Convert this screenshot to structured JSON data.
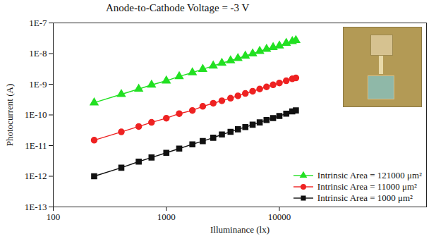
{
  "chart_data": {
    "type": "line",
    "title": "Anode-to-Cathode Voltage = -3 V",
    "x_label": "Illuminance (lx)",
    "y_label": "Photocurrent (A)",
    "log": true,
    "grid": false,
    "legend": "lower right",
    "xlim": [
      100,
      200000
    ],
    "xticks": [
      100,
      1000,
      10000
    ],
    "ylim": [
      1e-13,
      1e-07
    ],
    "yticks": [
      {
        "value": 1e-13,
        "label": "1E-13"
      },
      {
        "value": 1e-12,
        "label": "1E-12"
      },
      {
        "value": 1e-11,
        "label": "1E-11"
      },
      {
        "value": 1e-10,
        "label": "1E-10"
      },
      {
        "value": 1e-09,
        "label": "1E-9"
      },
      {
        "value": 1e-08,
        "label": "1E-8"
      },
      {
        "value": 1e-07,
        "label": "1E-7"
      }
    ],
    "x": [
      230,
      400,
      570,
      740,
      1000,
      1300,
      1700,
      2100,
      2600,
      3100,
      3700,
      4300,
      5000,
      5800,
      6700,
      7700,
      8800,
      10000,
      11500,
      13000,
      14000
    ],
    "series": [
      {
        "name": "Intrinsic Area = 121000 μm²",
        "color": "#22e022",
        "marker": "triangle",
        "values": [
          2.5e-10,
          4.7e-10,
          7e-10,
          9.5e-10,
          1.3e-09,
          1.8e-09,
          2.4e-09,
          3.1e-09,
          4e-09,
          4.9e-09,
          5.9e-09,
          7e-09,
          8.4e-09,
          9.9e-09,
          1.2e-08,
          1.4e-08,
          1.6e-08,
          1.8e-08,
          2.2e-08,
          2.5e-08,
          2.7e-08
        ]
      },
      {
        "name": "Intrinsic Area = 11000 μm²",
        "color": "#ee2222",
        "marker": "circle",
        "values": [
          1.5e-11,
          2.8e-11,
          4.2e-11,
          5.7e-11,
          7.8e-11,
          1.1e-10,
          1.4e-10,
          1.9e-10,
          2.4e-10,
          2.9e-10,
          3.5e-10,
          4.2e-10,
          5e-10,
          5.9e-10,
          7e-10,
          8.2e-10,
          9.6e-10,
          1.1e-09,
          1.3e-09,
          1.5e-09,
          1.6e-09
        ]
      },
      {
        "name": "Intrinsic Area = 1000 μm²",
        "color": "#111111",
        "marker": "square",
        "values": [
          1e-12,
          1.9e-12,
          3e-12,
          4.1e-12,
          5.8e-12,
          8e-12,
          1.1e-11,
          1.4e-11,
          1.8e-11,
          2.3e-11,
          2.8e-11,
          3.4e-11,
          4e-11,
          4.8e-11,
          5.7e-11,
          6.8e-11,
          7.9e-11,
          9.2e-11,
          1.1e-10,
          1.3e-10,
          1.4e-10
        ]
      }
    ]
  }
}
